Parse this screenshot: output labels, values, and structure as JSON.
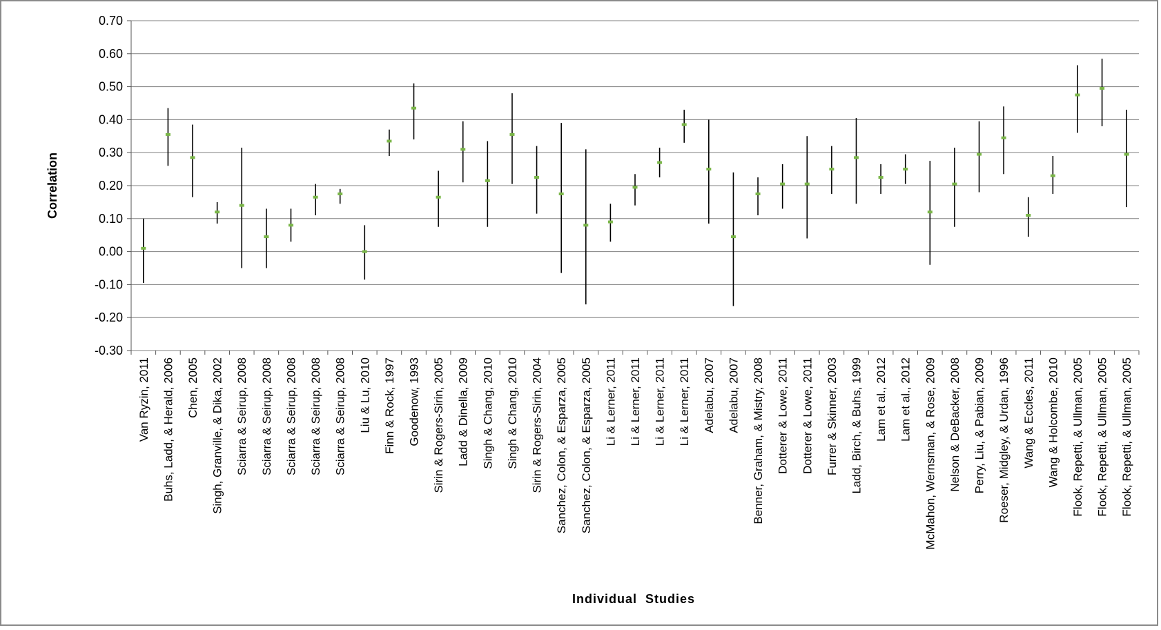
{
  "chart_data": {
    "type": "error-bar",
    "xlabel": "Individual  Studies",
    "ylabel": "Correlation",
    "ylim": [
      -0.3,
      0.7
    ],
    "yticks": [
      -0.3,
      -0.2,
      -0.1,
      0.0,
      0.1,
      0.2,
      0.3,
      0.4,
      0.5,
      0.6,
      0.7
    ],
    "ytick_labels": [
      "-0.30",
      "-0.20",
      "-0.10",
      "0.00",
      "0.10",
      "0.20",
      "0.30",
      "0.40",
      "0.50",
      "0.60",
      "0.70"
    ],
    "grid": "horizontal",
    "colors": {
      "point": "#7ab648",
      "errorbar": "#000000",
      "grid": "#808080"
    },
    "categories": [
      "Van Ryzin, 2011",
      "Buhs, Ladd, & Herald, 2006",
      "Chen, 2005",
      "Singh, Granville, & Dika, 2002",
      "Sciarra & Seirup, 2008",
      "Sciarra & Seirup, 2008",
      "Sciarra & Seirup, 2008",
      "Sciarra & Seirup, 2008",
      "Sciarra & Seirup, 2008",
      "Liu & Lu, 2010",
      "Finn & Rock, 1997",
      "Goodenow, 1993",
      "Sirin & Rogers-Sirin, 2005",
      "Ladd & Dinella, 2009",
      "Singh & Chang, 2010",
      "Singh & Chang, 2010",
      "Sirin & Rogers-Sirin, 2004",
      "Sanchez, Colon, & Esparza, 2005",
      "Sanchez, Colon, & Esparza, 2005",
      "Li & Lerner, 2011",
      "Li & Lerner, 2011",
      "Li & Lerner, 2011",
      "Li & Lerner, 2011",
      "Adelabu, 2007",
      "Adelabu, 2007",
      "Benner, Graham, & Mistry, 2008",
      "Dotterer & Lowe, 2011",
      "Dotterer & Lowe, 2011",
      "Furrer & Skinner, 2003",
      "Ladd, Birch, & Buhs, 1999",
      "Lam et al., 2012",
      "Lam et al., 2012",
      "McMahon, Wernsman, & Rose, 2009",
      "Nelson & DeBacker, 2008",
      "Perry, Liu, & Pabian, 2009",
      "Roeser, Midgley, & Urdan, 1996",
      "Wang & Eccles, 2011",
      "Wang & Holcombe, 2010",
      "Flook, Repetti, & Ullman, 2005",
      "Flook, Repetti, & Ullman, 2005",
      "Flook, Repetti, & Ullman, 2005"
    ],
    "series": [
      {
        "values": [
          0.01,
          0.355,
          0.285,
          0.12,
          0.14,
          0.045,
          0.08,
          0.165,
          0.175,
          0.0,
          0.335,
          0.435,
          0.165,
          0.31,
          0.215,
          0.355,
          0.225,
          0.175,
          0.08,
          0.09,
          0.195,
          0.27,
          0.385,
          0.25,
          0.045,
          0.175,
          0.205,
          0.205,
          0.25,
          0.285,
          0.225,
          0.25,
          0.12,
          0.205,
          0.295,
          0.345,
          0.11,
          0.23,
          0.475,
          0.495,
          0.295
        ],
        "lower": [
          -0.095,
          0.26,
          0.165,
          0.085,
          -0.05,
          -0.05,
          0.03,
          0.11,
          0.145,
          -0.085,
          0.29,
          0.34,
          0.075,
          0.21,
          0.075,
          0.205,
          0.115,
          -0.065,
          -0.16,
          0.03,
          0.14,
          0.225,
          0.33,
          0.085,
          -0.165,
          0.11,
          0.13,
          0.04,
          0.175,
          0.145,
          0.175,
          0.205,
          -0.04,
          0.075,
          0.18,
          0.235,
          0.045,
          0.175,
          0.36,
          0.38,
          0.135
        ],
        "upper": [
          0.1,
          0.435,
          0.385,
          0.15,
          0.315,
          0.13,
          0.13,
          0.205,
          0.19,
          0.08,
          0.37,
          0.51,
          0.245,
          0.395,
          0.335,
          0.48,
          0.32,
          0.39,
          0.31,
          0.145,
          0.235,
          0.315,
          0.43,
          0.4,
          0.24,
          0.225,
          0.265,
          0.35,
          0.32,
          0.405,
          0.265,
          0.295,
          0.275,
          0.315,
          0.395,
          0.44,
          0.165,
          0.29,
          0.565,
          0.585,
          0.43
        ]
      }
    ]
  }
}
